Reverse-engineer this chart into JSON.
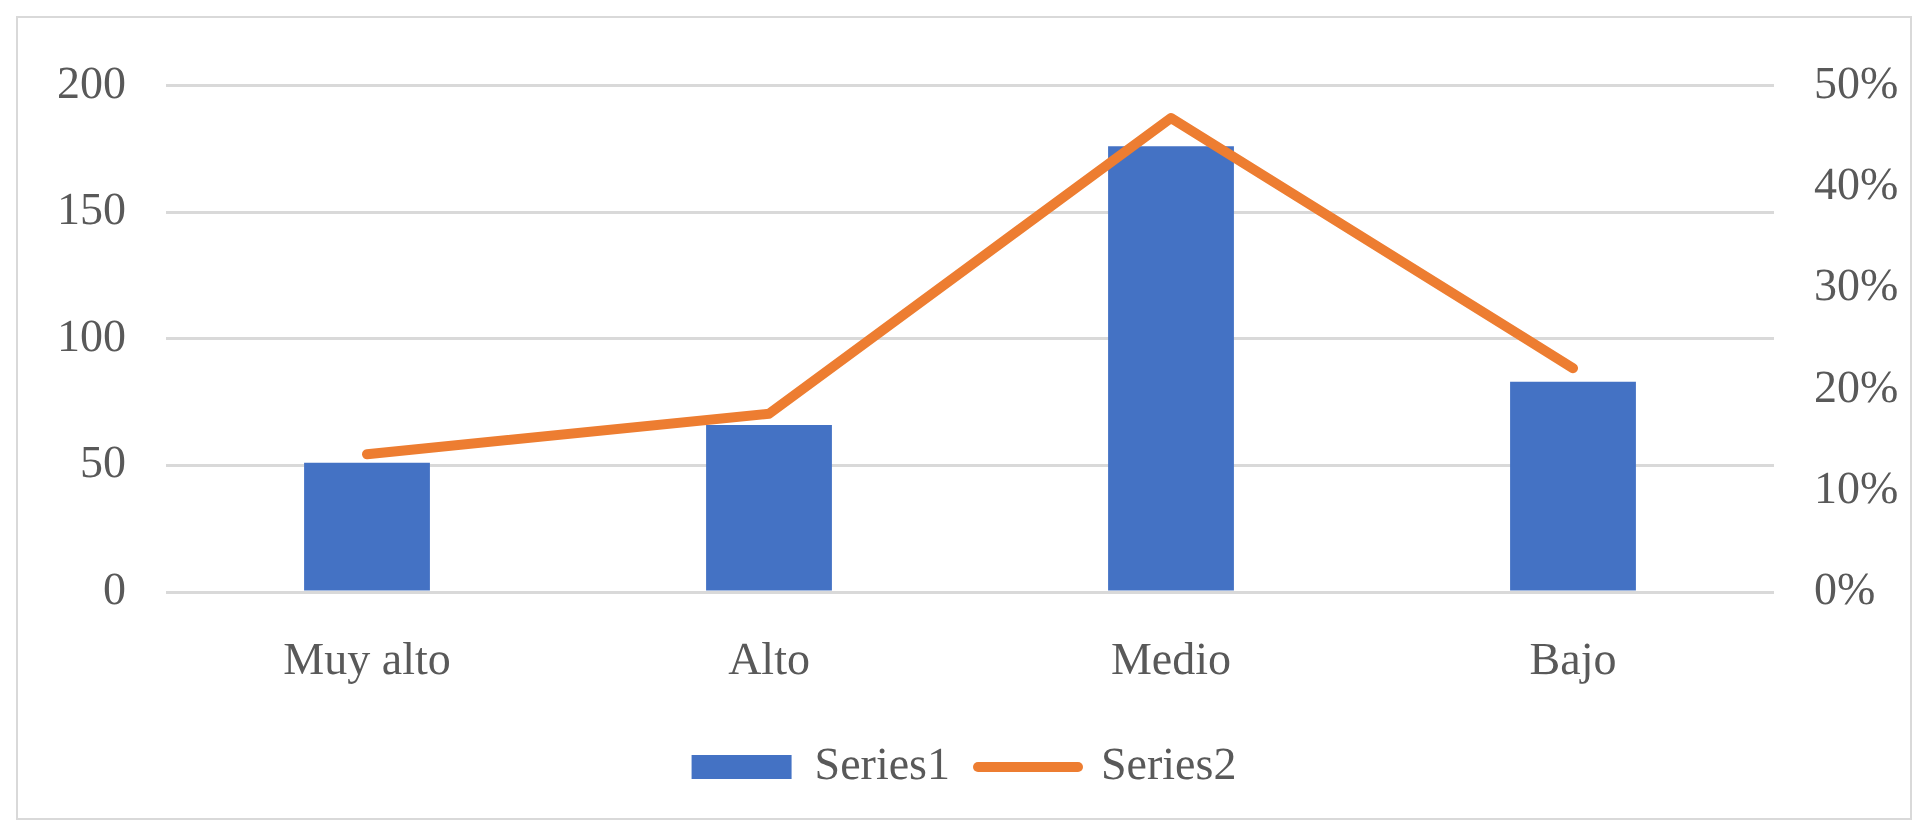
{
  "chart_data": {
    "type": "bar",
    "categories": [
      "Muy alto",
      "Alto",
      "Medio",
      "Bajo"
    ],
    "series": [
      {
        "name": "Series1",
        "color": "#4472c4",
        "values": [
          51,
          66,
          176,
          83
        ]
      },
      {
        "name": "Series2",
        "type": "line",
        "axis": "y2",
        "color": "#ed7d31",
        "values": [
          13.6,
          17.6,
          46.8,
          22.1
        ]
      }
    ],
    "ylim": [
      0,
      200
    ],
    "yticks": [
      0,
      50,
      100,
      150,
      200
    ],
    "y2lim": [
      0,
      50
    ],
    "y2ticks": [
      {
        "value": 0,
        "label": "0%"
      },
      {
        "value": 10,
        "label": "10%"
      },
      {
        "value": 20,
        "label": "20%"
      },
      {
        "value": 30,
        "label": "30%"
      },
      {
        "value": 40,
        "label": "40%"
      },
      {
        "value": 50,
        "label": "50%"
      }
    ],
    "grid": "y",
    "legend": "bottom",
    "marker": "none"
  }
}
